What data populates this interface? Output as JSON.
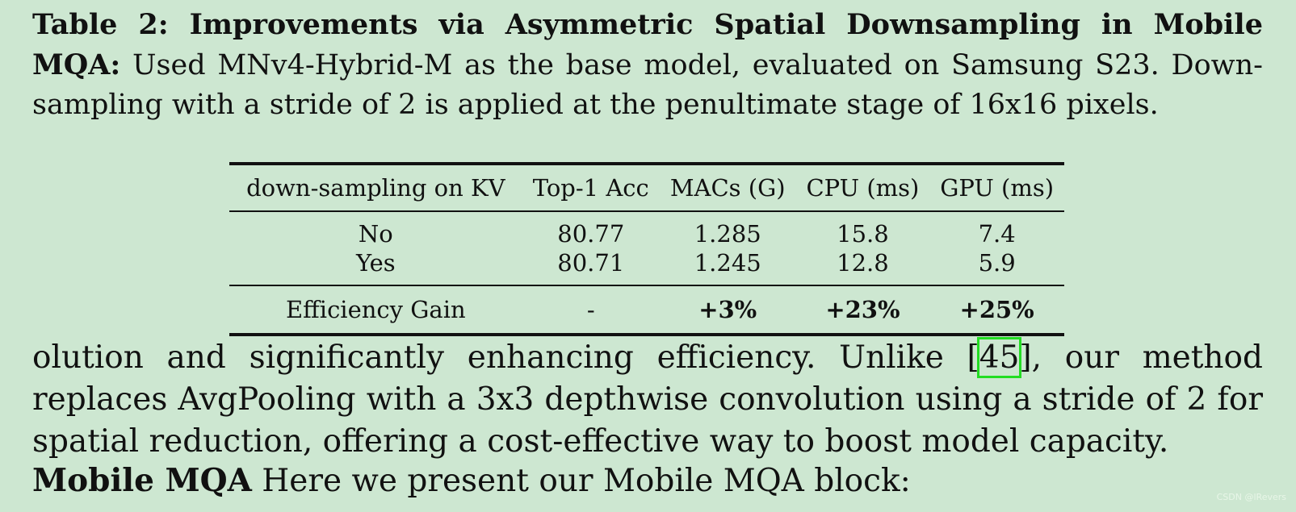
{
  "caption": {
    "label": "Table 2: Improvements via Asymmetric Spatial Downsampling in Mobile MQA:",
    "text": " Used MNv4-Hybrid-M as the base model, evaluated on Samsung S23. Down-sampling with a stride of 2 is applied at the penultimate stage of 16x16 pixels."
  },
  "table": {
    "headers": [
      "down-sampling on KV",
      "Top-1 Acc",
      "MACs (G)",
      "CPU (ms)",
      "GPU (ms)"
    ],
    "rows": [
      [
        "No",
        "80.77",
        "1.285",
        "15.8",
        "7.4"
      ],
      [
        "Yes",
        "80.71",
        "1.245",
        "12.8",
        "5.9"
      ]
    ],
    "footer": [
      "Efficiency Gain",
      "-",
      "+3%",
      "+23%",
      "+25%"
    ]
  },
  "paragraph": {
    "before_cite": "olution and significantly enhancing efficiency. Unlike [",
    "cite": "45",
    "after_cite": "], our method replaces AvgPooling with a 3x3 depthwise convolution using a stride of 2 for spatial reduction, offering a cost-effective way to boost model capacity."
  },
  "section": {
    "heading": "Mobile MQA",
    "text": " Here we present our Mobile MQA block:"
  },
  "watermark": "CSDN @lRevers"
}
